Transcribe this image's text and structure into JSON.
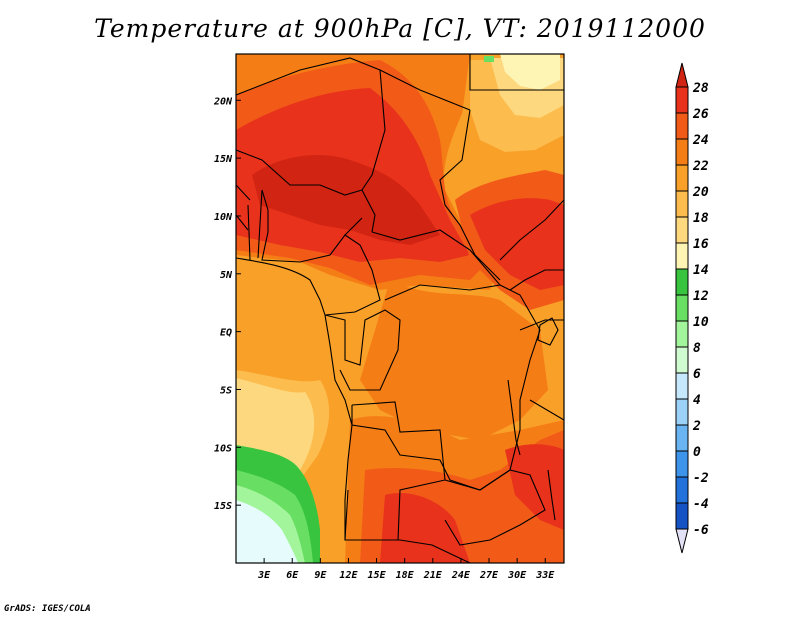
{
  "title": "Temperature at 900hPa [C], VT: 2019112000",
  "credit": "GrADS: IGES/COLA",
  "map": {
    "region": "Central Africa",
    "lon_range_deg": [
      0,
      35
    ],
    "lat_range_deg": [
      -20,
      24
    ],
    "lat_labels": [
      {
        "value": 20,
        "label": "20N"
      },
      {
        "value": 15,
        "label": "15N"
      },
      {
        "value": 10,
        "label": "10N"
      },
      {
        "value": 5,
        "label": "5N"
      },
      {
        "value": 0,
        "label": "EQ"
      },
      {
        "value": -5,
        "label": "5S"
      },
      {
        "value": -10,
        "label": "10S"
      },
      {
        "value": -15,
        "label": "15S"
      }
    ],
    "lon_labels": [
      {
        "value": 3,
        "label": "3E"
      },
      {
        "value": 6,
        "label": "6E"
      },
      {
        "value": 9,
        "label": "9E"
      },
      {
        "value": 12,
        "label": "12E"
      },
      {
        "value": 15,
        "label": "15E"
      },
      {
        "value": 18,
        "label": "18E"
      },
      {
        "value": 21,
        "label": "21E"
      },
      {
        "value": 24,
        "label": "24E"
      },
      {
        "value": 27,
        "label": "27E"
      },
      {
        "value": 30,
        "label": "30E"
      },
      {
        "value": 33,
        "label": "33E"
      }
    ]
  },
  "colorbar": {
    "levels": [
      {
        "value": 28,
        "label": "28",
        "color": "#e8321c"
      },
      {
        "value": 26,
        "label": "26",
        "color": "#f25a18"
      },
      {
        "value": 24,
        "label": "24",
        "color": "#f57d16"
      },
      {
        "value": 22,
        "label": "22",
        "color": "#f9a029"
      },
      {
        "value": 20,
        "label": "20",
        "color": "#fcbc4e"
      },
      {
        "value": 18,
        "label": "18",
        "color": "#fdd87e"
      },
      {
        "value": 16,
        "label": "16",
        "color": "#fef4b4"
      },
      {
        "value": 14,
        "label": "14",
        "color": "#38c43e"
      },
      {
        "value": 12,
        "label": "12",
        "color": "#68df62"
      },
      {
        "value": 10,
        "label": "10",
        "color": "#a3f59b"
      },
      {
        "value": 8,
        "label": "8",
        "color": "#d0fbd0"
      },
      {
        "value": 6,
        "label": "6",
        "color": "#c6e8fc"
      },
      {
        "value": 4,
        "label": "4",
        "color": "#9cd2f8"
      },
      {
        "value": 2,
        "label": "2",
        "color": "#6ab4f2"
      },
      {
        "value": 0,
        "label": "0",
        "color": "#3e93ea"
      },
      {
        "value": -2,
        "label": "-2",
        "color": "#2372dc"
      },
      {
        "value": -4,
        "label": "-4",
        "color": "#1552c4"
      },
      {
        "value": -6,
        "label": "-6",
        "color": "#1234a6"
      }
    ],
    "top_color": "#d22412",
    "bottom_color": "#0c1478",
    "under_color": "#e3e1f5"
  },
  "colors": {
    "t28": "#d22412",
    "t26": "#e8321c",
    "t24": "#f25a18",
    "t22": "#f57d16",
    "t20": "#f9a029",
    "t18": "#fcbc4e",
    "t16": "#fdd87e",
    "t14": "#fef4b4",
    "green_dark": "#38c43e",
    "green": "#68df62",
    "green_light": "#a3f59b",
    "green_pale": "#d0fbd0",
    "cyan_pale": "#e6fcfc"
  }
}
